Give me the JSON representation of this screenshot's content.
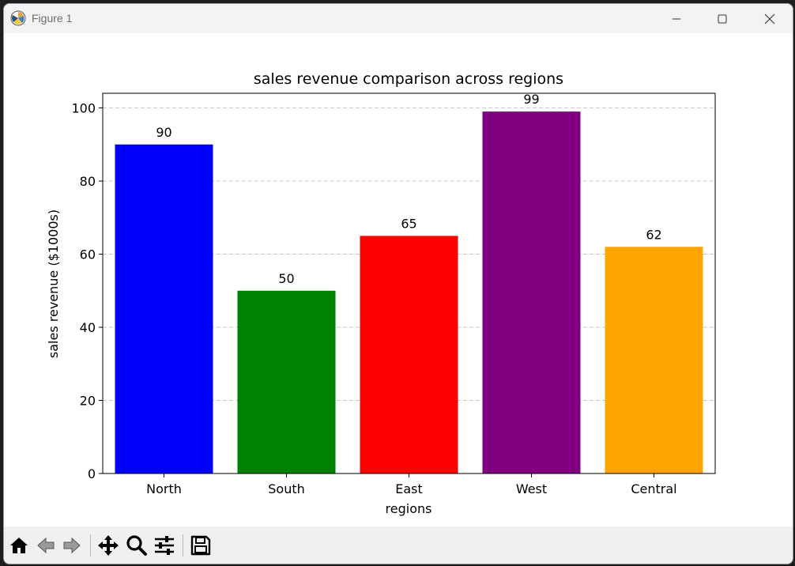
{
  "window": {
    "title": "Figure 1"
  },
  "icons": {
    "app": "matplotlib-icon",
    "minimize": "minimize-icon",
    "maximize": "maximize-icon",
    "close": "close-icon",
    "home": "home-icon",
    "back": "back-arrow-icon",
    "forward": "forward-arrow-icon",
    "pan": "pan-move-icon",
    "zoom": "zoom-magnifier-icon",
    "configure": "configure-subplots-icon",
    "save": "save-floppy-icon"
  },
  "chart_data": {
    "type": "bar",
    "title": "sales revenue comparison across regions",
    "xlabel": "regions",
    "ylabel": "sales revenue ($1000s)",
    "categories": [
      "North",
      "South",
      "East",
      "West",
      "Central"
    ],
    "values": [
      90,
      50,
      65,
      99,
      62
    ],
    "colors": [
      "#0000ff",
      "#008000",
      "#ff0000",
      "#800080",
      "#ffa500"
    ],
    "ylim": [
      0,
      104
    ],
    "yticks": [
      0,
      20,
      40,
      60,
      80,
      100
    ],
    "grid": "y-axis dashed",
    "data_labels": true
  }
}
